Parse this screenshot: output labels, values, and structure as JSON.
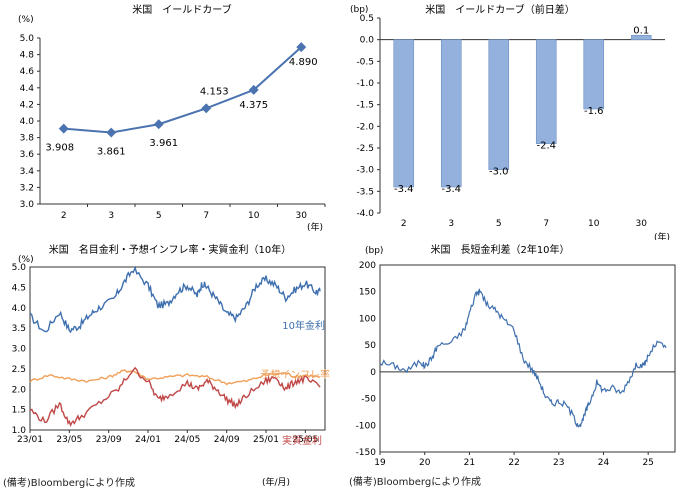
{
  "chart_data": [
    {
      "type": "line",
      "title": "米国　イールドカーブ",
      "yunit": "(%)",
      "xunit": "(年)",
      "categories": [
        "2",
        "3",
        "5",
        "7",
        "10",
        "30"
      ],
      "values": [
        3.908,
        3.861,
        3.961,
        4.153,
        4.375,
        4.89
      ],
      "value_labels": [
        "3.908",
        "3.861",
        "3.961",
        "4.153",
        "4.375",
        "4.890"
      ],
      "ylim": [
        3.0,
        5.0
      ],
      "yticks": [
        "3.0",
        "3.2",
        "3.4",
        "3.6",
        "3.8",
        "4.0",
        "4.2",
        "4.4",
        "4.6",
        "4.8",
        "5.0"
      ],
      "grid": false,
      "color": "#4a73b0"
    },
    {
      "type": "bar",
      "title": "米国　イールドカーブ（前日差）",
      "yunit": "(bp)",
      "xunit": "(年)",
      "categories": [
        "2",
        "3",
        "5",
        "7",
        "10",
        "30"
      ],
      "values": [
        -3.4,
        -3.4,
        -3.0,
        -2.4,
        -1.6,
        0.1
      ],
      "value_labels": [
        "-3.4",
        "-3.4",
        "-3.0",
        "-2.4",
        "-1.6",
        "0.1"
      ],
      "ylim": [
        -4.0,
        0.5
      ],
      "yticks": [
        "-4.0",
        "-3.5",
        "-3.0",
        "-2.5",
        "-2.0",
        "-1.5",
        "-1.0",
        "-0.5",
        "0.0",
        "0.5"
      ],
      "grid": false,
      "color": "#93b1dc"
    },
    {
      "type": "line",
      "title": "米国　名目金利・予想インフレ率・実質金利（10年）",
      "yunit": "(%)",
      "xunit": "(年/月)",
      "xticks": [
        "23/01",
        "23/05",
        "23/09",
        "24/01",
        "24/05",
        "24/09",
        "25/01",
        "25/05"
      ],
      "ylim": [
        1.0,
        5.0
      ],
      "yticks": [
        "1.0",
        "1.5",
        "2.0",
        "2.5",
        "3.0",
        "3.5",
        "4.0",
        "4.5",
        "5.0"
      ],
      "grid": false,
      "series": [
        {
          "name": "10年金利",
          "color": "#3e6fae",
          "x": [
            0,
            1.5,
            3,
            4,
            5,
            6,
            7,
            8.5,
            9.5,
            10.5,
            12,
            13,
            14,
            15,
            16,
            17,
            17.5,
            18,
            19,
            20,
            21,
            22,
            23,
            24,
            25,
            26,
            27,
            28,
            29,
            29.5
          ],
          "y": [
            3.8,
            3.4,
            3.9,
            3.45,
            3.55,
            3.8,
            4.0,
            4.2,
            4.6,
            4.95,
            4.55,
            4.05,
            4.1,
            4.4,
            4.55,
            4.3,
            4.6,
            4.5,
            4.2,
            3.85,
            3.75,
            4.05,
            4.55,
            4.7,
            4.55,
            4.25,
            4.45,
            4.6,
            4.4,
            4.4
          ]
        },
        {
          "name": "予想インフレ率",
          "color": "#f0a058",
          "x": [
            0,
            2,
            4,
            6,
            8,
            9.5,
            10.5,
            12,
            14,
            16,
            18,
            20,
            22,
            24,
            26,
            27,
            28,
            29.5
          ],
          "y": [
            2.2,
            2.35,
            2.25,
            2.2,
            2.3,
            2.45,
            2.45,
            2.25,
            2.3,
            2.35,
            2.3,
            2.15,
            2.2,
            2.35,
            2.4,
            2.3,
            2.35,
            2.3
          ]
        },
        {
          "name": "実質金利",
          "color": "#c04848",
          "x": [
            0,
            1.5,
            3,
            4,
            5,
            7,
            9,
            10.5,
            12,
            13,
            14,
            16,
            17,
            18,
            19,
            20,
            21,
            22,
            24,
            25,
            26,
            27,
            28,
            29.5
          ],
          "y": [
            1.5,
            1.2,
            1.65,
            1.15,
            1.3,
            1.65,
            2.0,
            2.5,
            2.2,
            1.75,
            1.85,
            2.15,
            2.0,
            2.2,
            2.0,
            1.75,
            1.6,
            1.85,
            2.2,
            2.3,
            2.0,
            2.2,
            2.25,
            2.05
          ]
        }
      ]
    },
    {
      "type": "line",
      "title": "米国　長短金利差（2年10年）",
      "yunit": "(bp)",
      "xticks": [
        "19",
        "20",
        "21",
        "22",
        "23",
        "24",
        "25"
      ],
      "ylim": [
        -150,
        200
      ],
      "yticks": [
        "-150",
        "-100",
        "-50",
        "0",
        "50",
        "100",
        "150",
        "200"
      ],
      "grid": false,
      "series": [
        {
          "name": "",
          "color": "#3e6fae",
          "x": [
            2019.0,
            2019.3,
            2019.6,
            2019.9,
            2020.0,
            2020.15,
            2020.3,
            2020.6,
            2020.9,
            2021.0,
            2021.15,
            2021.25,
            2021.4,
            2021.6,
            2021.8,
            2022.0,
            2022.2,
            2022.4,
            2022.55,
            2022.7,
            2022.85,
            2023.0,
            2023.2,
            2023.4,
            2023.5,
            2023.6,
            2023.7,
            2023.85,
            2024.0,
            2024.2,
            2024.4,
            2024.6,
            2024.75,
            2024.9,
            2025.0,
            2025.2,
            2025.4
          ],
          "y": [
            18,
            12,
            2,
            20,
            10,
            25,
            50,
            55,
            80,
            110,
            148,
            150,
            125,
            115,
            95,
            80,
            25,
            5,
            -15,
            -45,
            -60,
            -55,
            -65,
            -95,
            -100,
            -75,
            -55,
            -20,
            -35,
            -30,
            -40,
            -10,
            15,
            10,
            30,
            55,
            45
          ]
        }
      ]
    }
  ],
  "notes": {
    "source_left": "(備考)Bloombergにより作成",
    "source_right": "(備考)Bloombergにより作成"
  }
}
